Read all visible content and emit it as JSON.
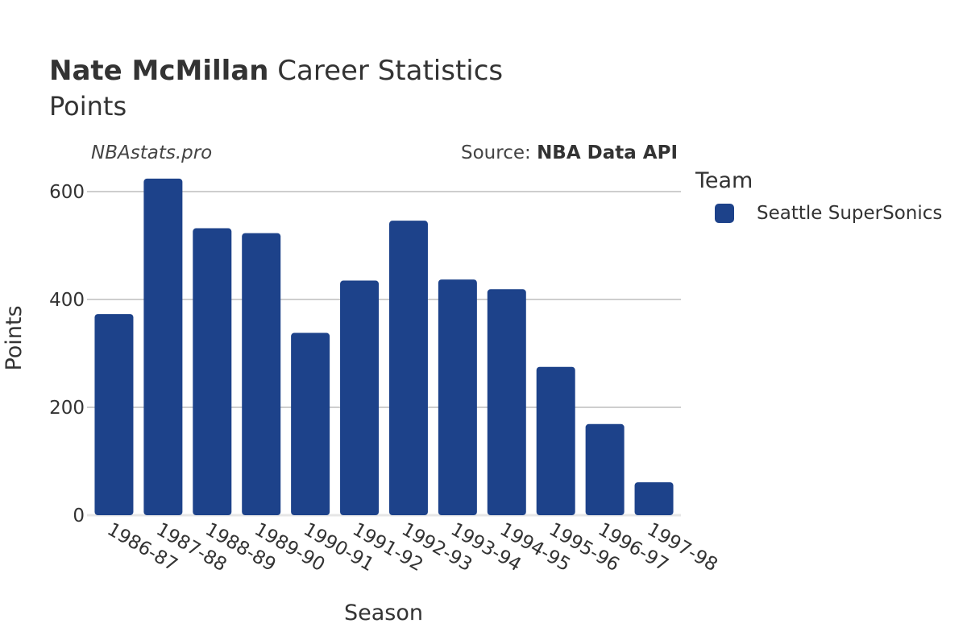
{
  "header": {
    "player": "Nate McMillan",
    "title_rest": " Career Statistics",
    "subtitle": "Points",
    "watermark": "NBAstats.pro",
    "source_prefix": "Source: ",
    "source_name": "NBA Data API"
  },
  "legend": {
    "title": "Team",
    "items": [
      {
        "label": "Seattle SuperSonics",
        "color": "#1d428a"
      }
    ]
  },
  "chart_data": {
    "type": "bar",
    "title": "Nate McMillan Career Statistics",
    "subtitle": "Points",
    "xlabel": "Season",
    "ylabel": "Points",
    "categories": [
      "1986-87",
      "1987-88",
      "1988-89",
      "1989-90",
      "1990-91",
      "1991-92",
      "1992-93",
      "1993-94",
      "1994-95",
      "1995-96",
      "1996-97",
      "1997-98"
    ],
    "series": [
      {
        "name": "Seattle SuperSonics",
        "color": "#1d428a",
        "values": [
          373,
          624,
          532,
          523,
          338,
          435,
          546,
          437,
          419,
          275,
          169,
          61
        ]
      }
    ],
    "ylim": [
      0,
      650
    ],
    "yticks": [
      0,
      200,
      400,
      600
    ],
    "grid": true,
    "legend_position": "right"
  }
}
